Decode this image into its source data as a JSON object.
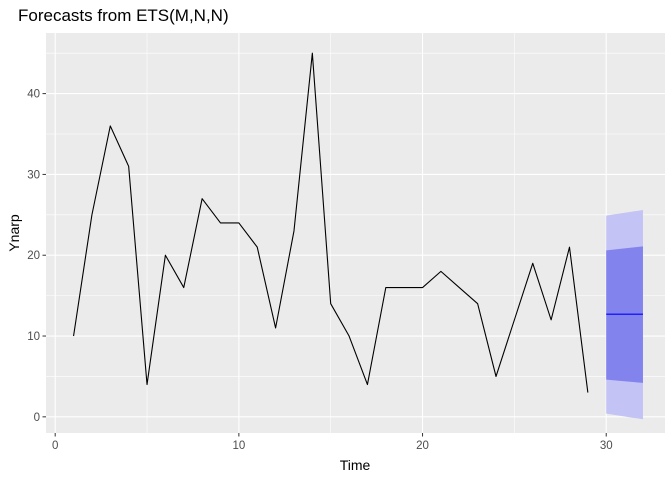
{
  "chart_data": {
    "type": "line",
    "title": "Forecasts from ETS(M,N,N)",
    "xlabel": "Time",
    "ylabel": "Ynarp",
    "xlim": [
      -0.5,
      33.2
    ],
    "ylim": [
      -2,
      47.5
    ],
    "x_ticks": [
      0,
      10,
      20,
      30
    ],
    "y_ticks": [
      0,
      10,
      20,
      30,
      40
    ],
    "grid": true,
    "legend": "none",
    "series": [
      {
        "role": "observed",
        "color": "#000000",
        "x": [
          1,
          2,
          3,
          4,
          5,
          6,
          7,
          8,
          9,
          10,
          11,
          12,
          13,
          14,
          15,
          16,
          17,
          18,
          19,
          20,
          21,
          22,
          23,
          24,
          25,
          26,
          27,
          28,
          29
        ],
        "values": [
          10,
          25,
          36,
          31,
          4,
          20,
          16,
          27,
          24,
          24,
          21,
          11,
          23,
          45,
          14,
          10,
          4,
          16,
          16,
          16,
          18,
          16,
          14,
          5,
          12,
          19,
          12,
          21,
          3
        ]
      },
      {
        "role": "forecast",
        "color": "#0000ff",
        "x": [
          30,
          32
        ],
        "values": [
          12.7,
          12.7
        ]
      }
    ],
    "intervals": [
      {
        "level": "95%",
        "color": "#c3c3f5",
        "x": [
          30,
          32
        ],
        "lower": [
          0.4,
          -0.3
        ],
        "upper": [
          24.9,
          25.6
        ]
      },
      {
        "level": "80%",
        "color": "#8383ee",
        "x": [
          30,
          32
        ],
        "lower": [
          4.6,
          4.2
        ],
        "upper": [
          20.6,
          21.1
        ]
      }
    ]
  }
}
